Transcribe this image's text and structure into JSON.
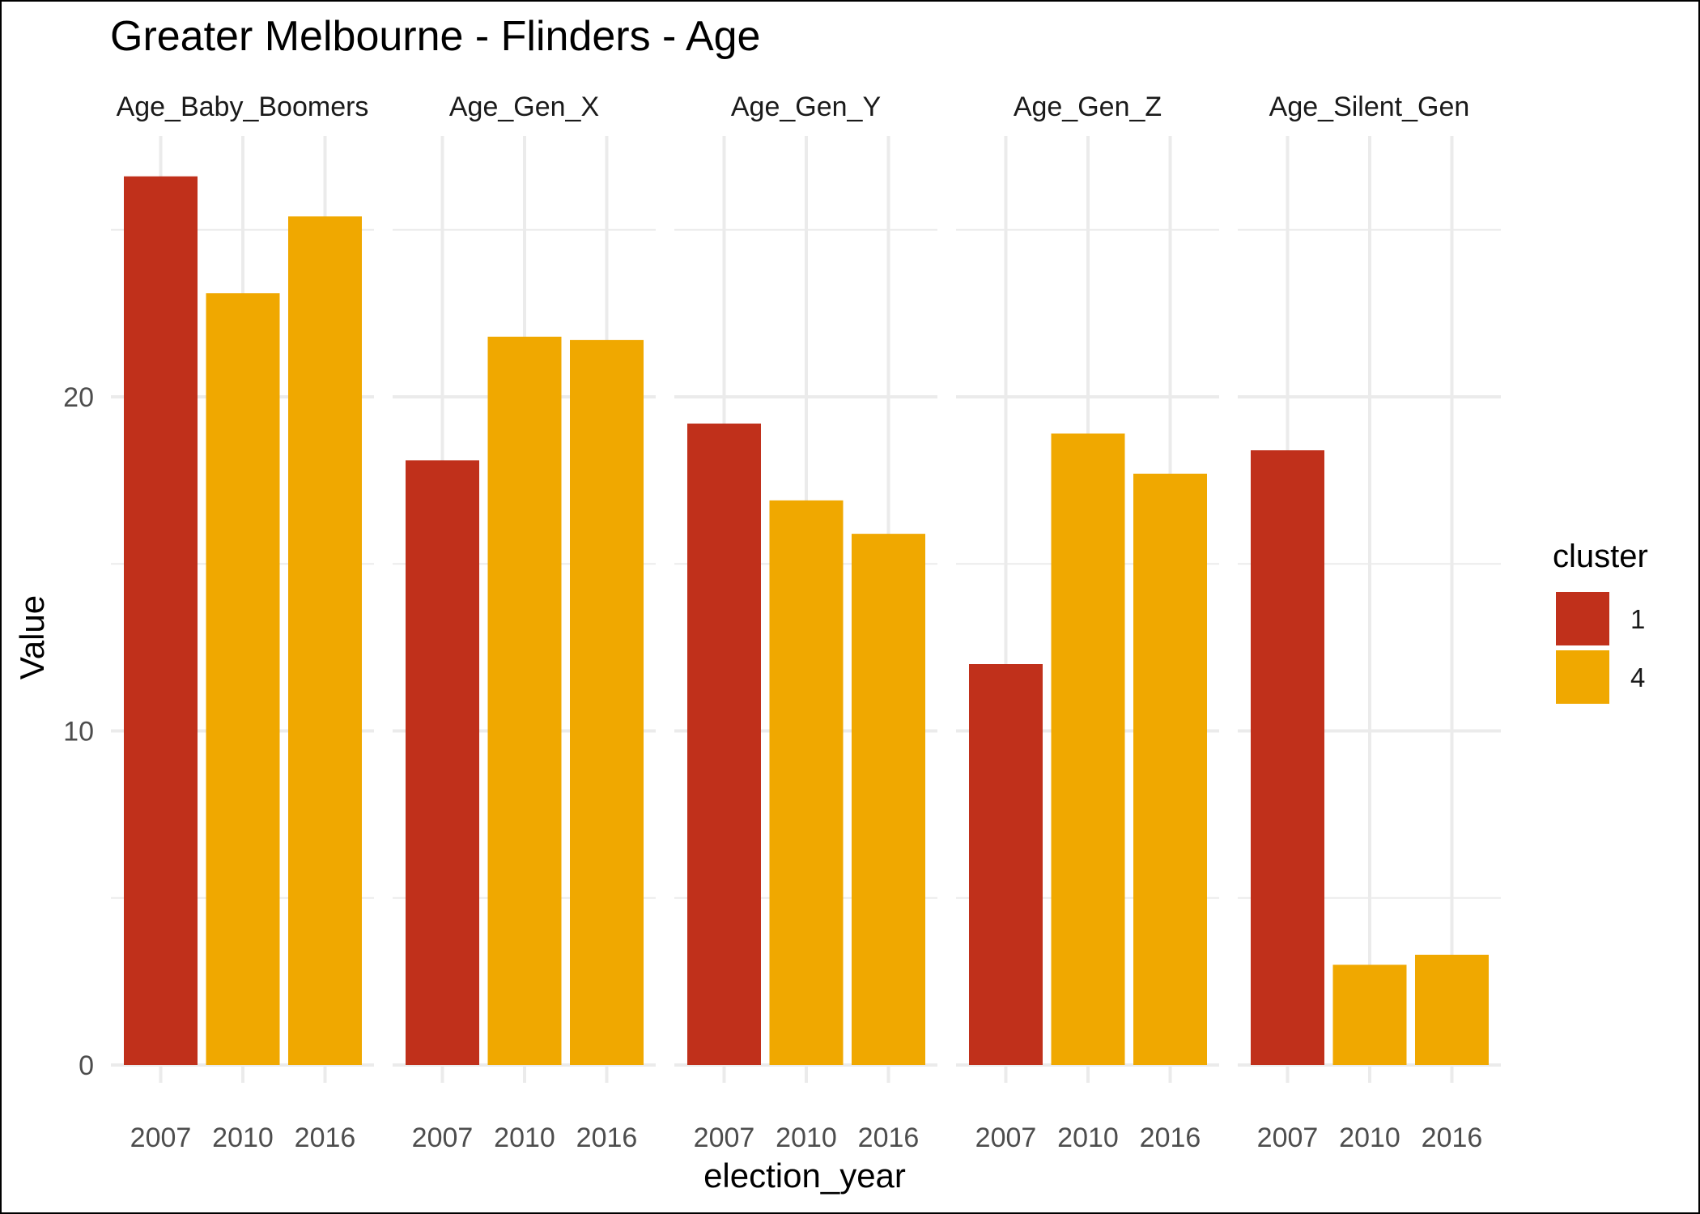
{
  "chart_data": {
    "type": "bar",
    "title": "Greater Melbourne - Flinders - Age",
    "xlabel": "election_year",
    "ylabel": "Value",
    "ylim": [
      0,
      28
    ],
    "y_ticks": [
      0,
      10,
      20
    ],
    "grid": true,
    "legend": {
      "title": "cluster",
      "placement": "right",
      "entries": [
        {
          "label": "1",
          "color": "#C0301B"
        },
        {
          "label": "4",
          "color": "#F0A800"
        }
      ]
    },
    "categories": [
      "2007",
      "2010",
      "2016"
    ],
    "facets": [
      {
        "name": "Age_Baby_Boomers",
        "values": [
          26.6,
          23.1,
          25.4
        ],
        "clusters": [
          "1",
          "4",
          "4"
        ]
      },
      {
        "name": "Age_Gen_X",
        "values": [
          18.1,
          21.8,
          21.7
        ],
        "clusters": [
          "1",
          "4",
          "4"
        ]
      },
      {
        "name": "Age_Gen_Y",
        "values": [
          19.2,
          16.9,
          15.9
        ],
        "clusters": [
          "1",
          "4",
          "4"
        ]
      },
      {
        "name": "Age_Gen_Z",
        "values": [
          12.0,
          18.9,
          17.7
        ],
        "clusters": [
          "1",
          "4",
          "4"
        ]
      },
      {
        "name": "Age_Silent_Gen",
        "values": [
          18.4,
          3.0,
          3.3
        ],
        "clusters": [
          "1",
          "4",
          "4"
        ]
      }
    ]
  }
}
